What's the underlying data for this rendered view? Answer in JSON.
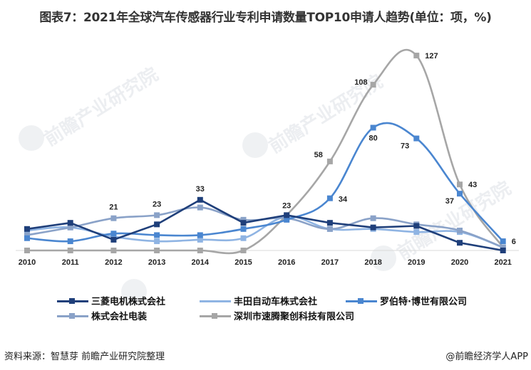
{
  "title": "图表7：2021年全球汽车传感器行业专利申请数量TOP10申请人趋势(单位：项，%)",
  "watermark": "前瞻产业研究院",
  "footer": {
    "source": "资料来源：智慧芽 前瞻产业研究院整理",
    "credit": "@前瞻经济学人APP"
  },
  "chart_data": {
    "type": "line",
    "title": "2021年全球汽车传感器行业专利申请数量TOP10申请人趋势(单位：项，%)",
    "xlabel": "",
    "ylabel": "",
    "categories": [
      "2010",
      "2011",
      "2012",
      "2013",
      "2014",
      "2015",
      "2016",
      "2017",
      "2018",
      "2019",
      "2020",
      "2021"
    ],
    "ylim": [
      0,
      130
    ],
    "grid": false,
    "legend_position": "bottom",
    "series": [
      {
        "name": "三菱电机株式会社",
        "color": "#1f3f7a",
        "smooth": false,
        "values": [
          14,
          18,
          7,
          17,
          33,
          18,
          23,
          18,
          15,
          16,
          5,
          0
        ],
        "labels": {
          "4": "33"
        }
      },
      {
        "name": "丰田自动车株式会社",
        "color": "#8fb4e3",
        "smooth": true,
        "values": [
          13,
          15,
          9,
          6,
          7,
          8,
          22,
          14,
          14,
          12,
          12,
          2
        ],
        "labels": {}
      },
      {
        "name": "罗伯特·博世有限公司",
        "color": "#4a86d0",
        "smooth": true,
        "values": [
          8,
          6,
          11,
          10,
          10,
          14,
          20,
          34,
          80,
          73,
          37,
          6
        ],
        "labels": {
          "7": "34",
          "8": "80",
          "9": "73",
          "10": "37",
          "11": "6"
        }
      },
      {
        "name": "株式会社电装",
        "color": "#8aa2c8",
        "smooth": true,
        "values": [
          10,
          15,
          21,
          23,
          28,
          20,
          21,
          14,
          21,
          17,
          13,
          2
        ],
        "labels": {
          "2": "21",
          "3": "23"
        }
      },
      {
        "name": "深圳市速腾聚创科技有限公司",
        "color": "#a6a6a6",
        "smooth": true,
        "values": [
          0,
          0,
          0,
          0,
          0,
          0,
          23,
          58,
          108,
          127,
          43,
          2
        ],
        "labels": {
          "6": "23",
          "7": "58",
          "8": "108",
          "9": "127",
          "10": "43"
        }
      }
    ]
  }
}
